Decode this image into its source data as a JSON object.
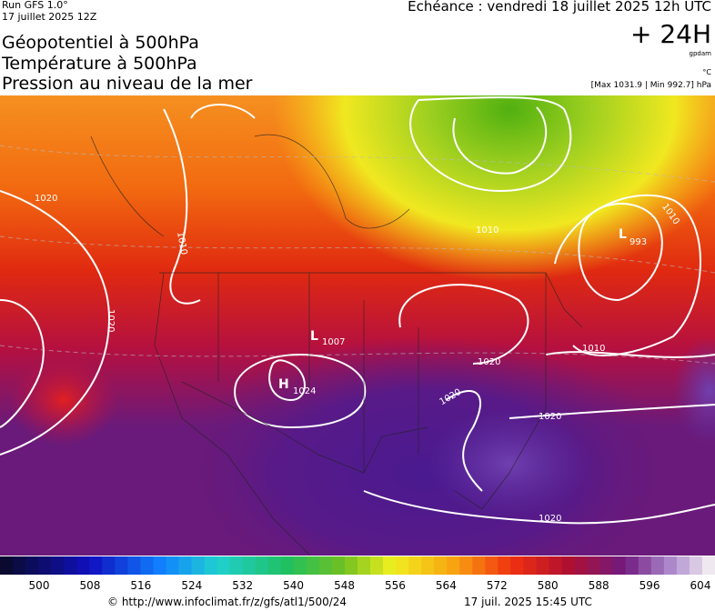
{
  "header": {
    "run": "Run GFS 1.0°",
    "run_date": "17 juillet 2025 12Z",
    "titles": [
      "Géopotentiel à 500hPa",
      "Température à 500hPa",
      "Pression au niveau de la mer"
    ],
    "valid_time": "Echéance : vendredi 18 juillet 2025 12h UTC",
    "lead": "+ 24H",
    "unit_geopotential": "gpdam",
    "unit_temperature": "°C",
    "pressure_range": "[Max 1031.9 | Min 992.7] hPa"
  },
  "map": {
    "labels": [
      "1020",
      "1010",
      "1010",
      "1010",
      "1020",
      "L",
      "1007",
      "H",
      "1024",
      "L",
      "993",
      "1010",
      "1020",
      "1020",
      "1020",
      "1020"
    ]
  },
  "colorbar": {
    "ticks": [
      500,
      508,
      516,
      524,
      532,
      540,
      548,
      556,
      564,
      572,
      580,
      588,
      596,
      604
    ]
  },
  "footer": {
    "source": "© http://www.infoclimat.fr/z/gfs/atl1/500/24",
    "generated": "17 juil. 2025 15:45 UTC"
  }
}
